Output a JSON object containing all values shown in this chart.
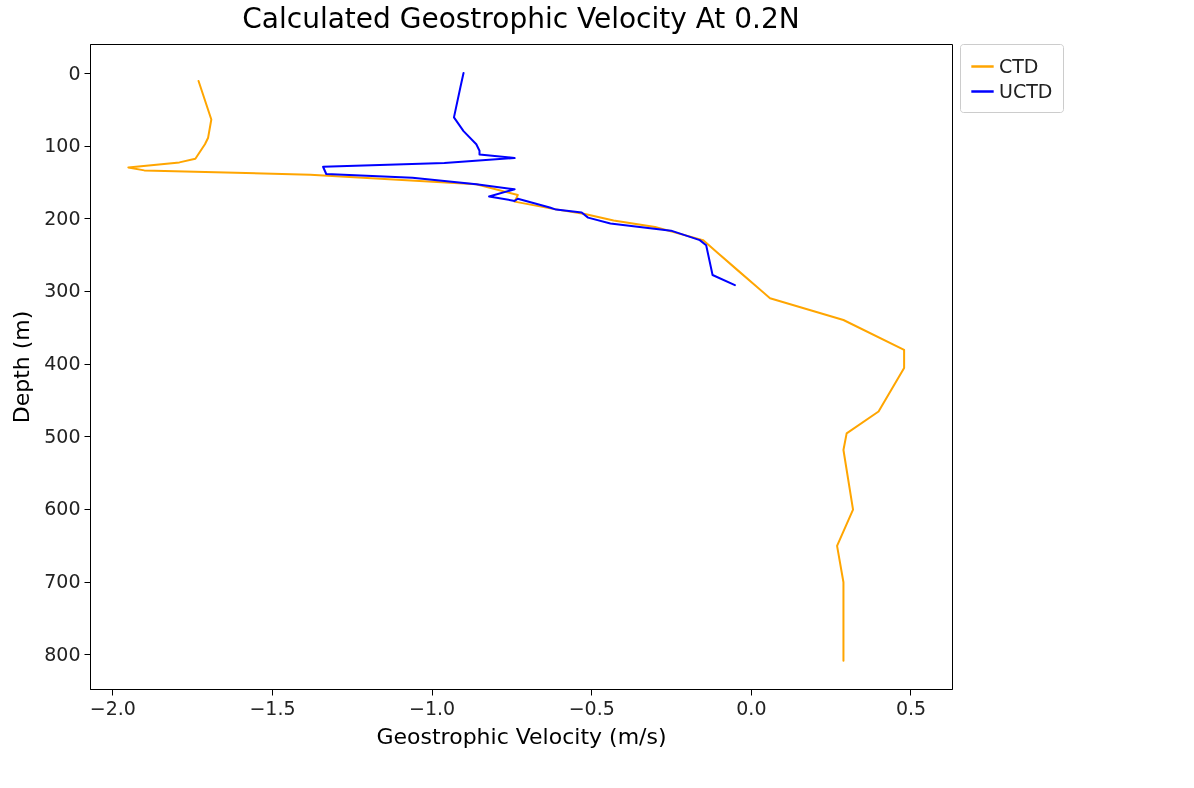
{
  "chart_data": {
    "type": "line",
    "title": "Calculated Geostrophic Velocity At 0.2N",
    "xlabel": "Geostrophic Velocity (m/s)",
    "ylabel": "Depth (m)",
    "xlim": [
      -2.07,
      0.63
    ],
    "xticks": [
      {
        "value": -2,
        "label": "−2.0"
      },
      {
        "value": -1.5,
        "label": "−1.5"
      },
      {
        "value": -1,
        "label": "−1.0"
      },
      {
        "value": -0.5,
        "label": "−0.5"
      },
      {
        "value": 0,
        "label": "0.0"
      },
      {
        "value": 0.5,
        "label": "0.5"
      }
    ],
    "ylim": [
      848,
      -40
    ],
    "yticks": [
      0,
      100,
      200,
      300,
      400,
      500,
      600,
      700,
      800
    ],
    "grid": false,
    "legend": "right",
    "line_style": "solid",
    "marker": "none",
    "series": [
      {
        "name": "CTD",
        "color": "#ffa500",
        "x": [
          -1.73,
          -1.69,
          -1.7,
          -1.71,
          -1.74,
          -1.79,
          -1.95,
          -1.9,
          -1.38,
          -0.86,
          -0.73,
          -0.74,
          -0.62,
          -0.52,
          -0.43,
          -0.3,
          -0.15,
          -0.1,
          -0.04,
          0.06,
          0.29,
          0.48,
          0.48,
          0.4,
          0.3,
          0.29,
          0.32,
          0.27,
          0.29,
          0.29,
          0.29
        ],
        "values": [
          11,
          64,
          89,
          98,
          118,
          123,
          130,
          134,
          140,
          153,
          168,
          177,
          187,
          194,
          203,
          212,
          230,
          249,
          272,
          310,
          340,
          381,
          406,
          466,
          496,
          519,
          601,
          651,
          701,
          770,
          809
        ]
      },
      {
        "name": "UCTD",
        "color": "#0000ff",
        "x": [
          -0.9,
          -0.91,
          -0.93,
          -0.9,
          -0.86,
          -0.85,
          -0.85,
          -0.74,
          -0.96,
          -1.34,
          -1.33,
          -1.06,
          -0.86,
          -0.74,
          -0.82,
          -0.74,
          -0.73,
          -0.63,
          -0.61,
          -0.53,
          -0.51,
          -0.44,
          -0.25,
          -0.16,
          -0.14,
          -0.12,
          -0.05
        ],
        "values": [
          0,
          20,
          61,
          80,
          98,
          107,
          112,
          117,
          124,
          129,
          139,
          144,
          153,
          160,
          170,
          176,
          173,
          185,
          188,
          192,
          199,
          207,
          217,
          230,
          237,
          278,
          292
        ]
      }
    ]
  }
}
